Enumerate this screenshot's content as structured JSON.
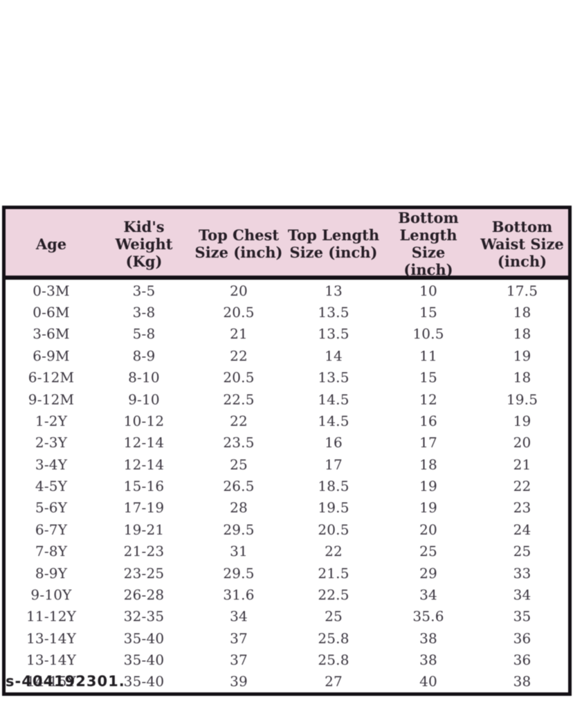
{
  "chart_data": {
    "type": "table",
    "columns": [
      "Age",
      "Kid's Weight (Kg)",
      "Top Chest Size (inch)",
      "Top Length Size (inch)",
      "Bottom Length Size (inch)",
      "Bottom Waist Size (inch)"
    ],
    "rows": [
      [
        "0-3M",
        "3-5",
        "20",
        "13",
        "10",
        "17.5"
      ],
      [
        "0-6M",
        "3-8",
        "20.5",
        "13.5",
        "15",
        "18"
      ],
      [
        "3-6M",
        "5-8",
        "21",
        "13.5",
        "10.5",
        "18"
      ],
      [
        "6-9M",
        "8-9",
        "22",
        "14",
        "11",
        "19"
      ],
      [
        "6-12M",
        "8-10",
        "20.5",
        "13.5",
        "15",
        "18"
      ],
      [
        "9-12M",
        "9-10",
        "22.5",
        "14.5",
        "12",
        "19.5"
      ],
      [
        "1-2Y",
        "10-12",
        "22",
        "14.5",
        "16",
        "19"
      ],
      [
        "2-3Y",
        "12-14",
        "23.5",
        "16",
        "17",
        "20"
      ],
      [
        "3-4Y",
        "12-14",
        "25",
        "17",
        "18",
        "21"
      ],
      [
        "4-5Y",
        "15-16",
        "26.5",
        "18.5",
        "19",
        "22"
      ],
      [
        "5-6Y",
        "17-19",
        "28",
        "19.5",
        "19",
        "23"
      ],
      [
        "6-7Y",
        "19-21",
        "29.5",
        "20.5",
        "20",
        "24"
      ],
      [
        "7-8Y",
        "21-23",
        "31",
        "22",
        "25",
        "25"
      ],
      [
        "8-9Y",
        "23-25",
        "29.5",
        "21.5",
        "29",
        "33"
      ],
      [
        "9-10Y",
        "26-28",
        "31.6",
        "22.5",
        "34",
        "34"
      ],
      [
        "11-12Y",
        "32-35",
        "34",
        "25",
        "35.6",
        "35"
      ],
      [
        "13-14Y",
        "35-40",
        "37",
        "25.8",
        "38",
        "36"
      ],
      [
        "13-14Y",
        "35-40",
        "37",
        "25.8",
        "38",
        "36"
      ],
      [
        "14-15Y",
        "35-40",
        "39",
        "27",
        "40",
        "38"
      ]
    ],
    "layout": {
      "header_background": "#eed4df",
      "gridlines": "outer-border-and-header-separator-only",
      "value_alignment": "center"
    }
  },
  "header_display": [
    "Age",
    "Kid's\nWeight (Kg)",
    "Top Chest\nSize (inch)",
    "Top Length\nSize (inch)",
    "Bottom\nLength Size\n(inch)",
    "Bottom\nWaist Size\n(inch)"
  ],
  "watermark": "s-404192301.",
  "colors": {
    "page_bg": "#ffffff",
    "header_bg": "#eed4df",
    "table_border": "#141016",
    "header_text": "#261e26",
    "body_text": "#39343e"
  }
}
